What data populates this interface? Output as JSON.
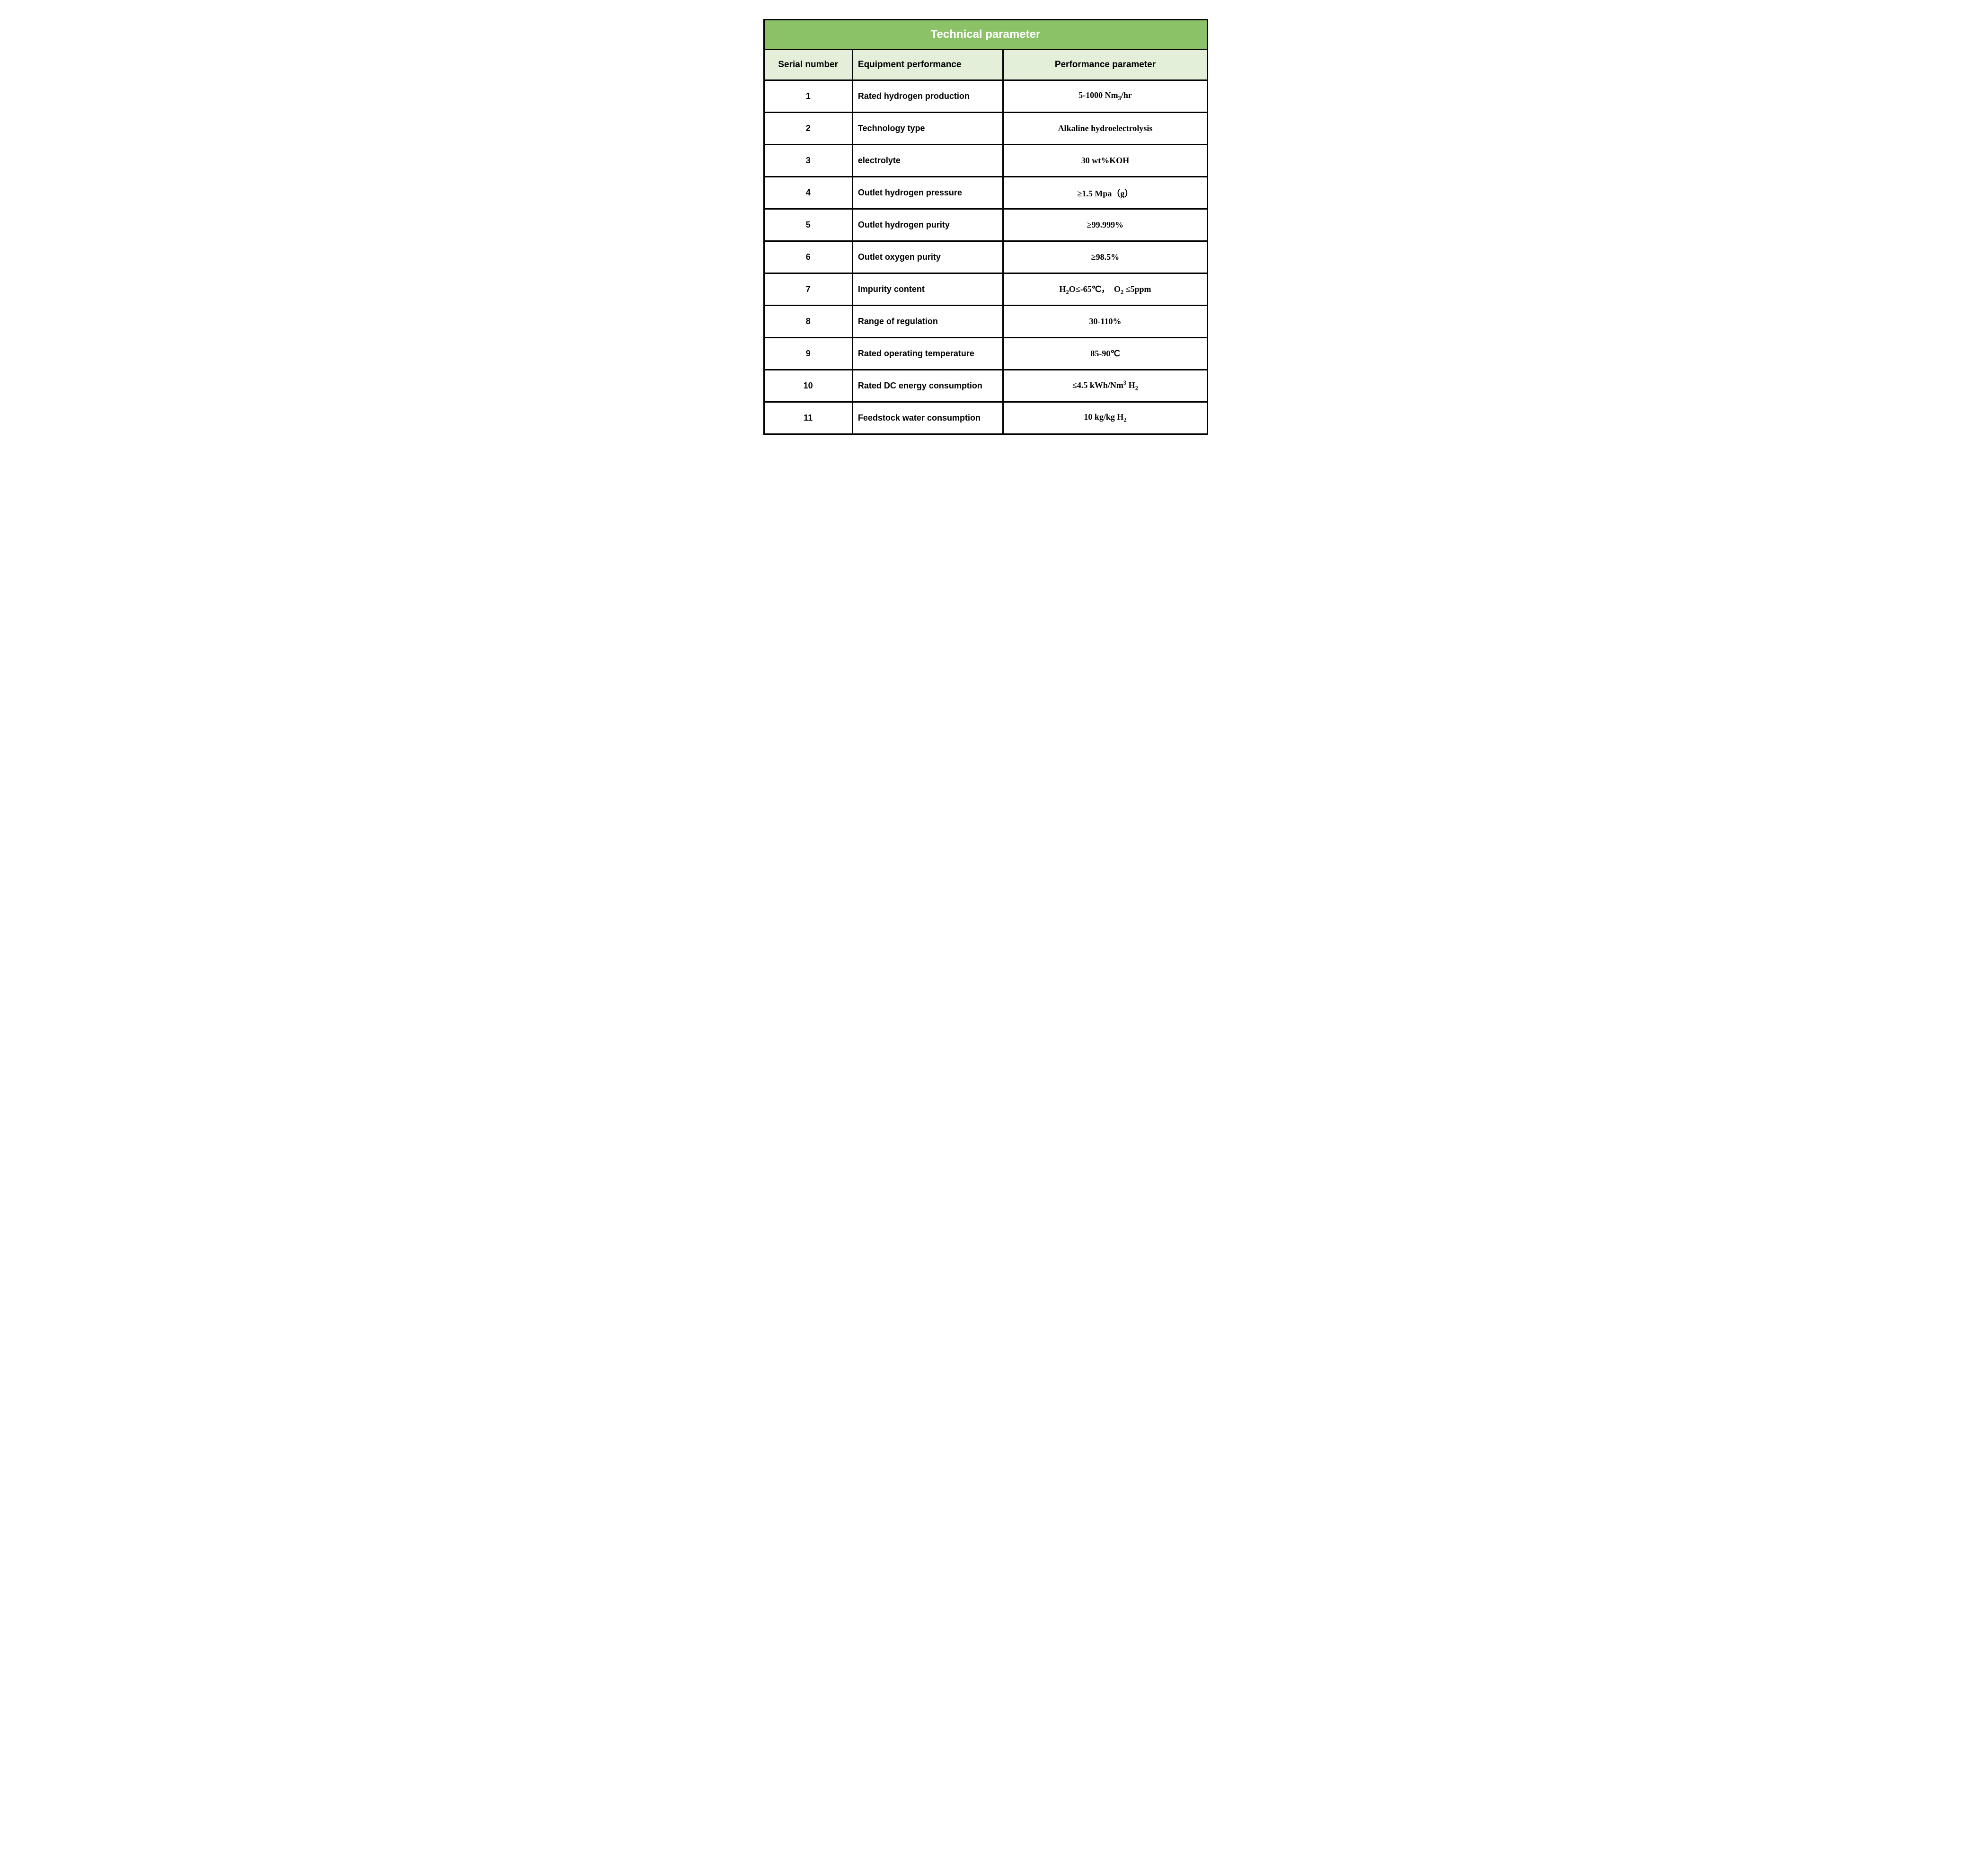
{
  "table": {
    "title": "Technical parameter",
    "title_bg": "#8bc268",
    "title_color": "#ffffff",
    "header_bg": "#e3efd9",
    "cell_bg": "#ffffff",
    "border_color": "#000000",
    "columns": {
      "serial": {
        "label": "Serial number",
        "width_pct": 20,
        "align": "center"
      },
      "equipment": {
        "label": "Equipment performance",
        "width_pct": 34,
        "align": "left"
      },
      "performance": {
        "label": "Performance parameter",
        "width_pct": 46,
        "align": "center"
      }
    },
    "rows": [
      {
        "serial": "1",
        "equipment": "Rated hydrogen production",
        "performance_html": "5-1000 Nm<sub>3</sub>/hr"
      },
      {
        "serial": "2",
        "equipment": "Technology type",
        "performance_html": "Alkaline hydroelectrolysis"
      },
      {
        "serial": "3",
        "equipment": "electrolyte",
        "performance_html": "30 wt%KOH"
      },
      {
        "serial": "4",
        "equipment": "Outlet hydrogen pressure",
        "performance_html": "≥1.5 Mpa（g）"
      },
      {
        "serial": "5",
        "equipment": "Outlet hydrogen purity",
        "performance_html": "≥99.999%"
      },
      {
        "serial": "6",
        "equipment": "Outlet oxygen purity",
        "performance_html": "≥98.5%"
      },
      {
        "serial": "7",
        "equipment": "Impurity content",
        "performance_html": "H<sub>2</sub>O≤-65℃，&nbsp;&nbsp;O<sub>2</sub> ≤5ppm"
      },
      {
        "serial": "8",
        "equipment": "Range of regulation",
        "performance_html": "30-110%"
      },
      {
        "serial": "9",
        "equipment": "Rated operating temperature",
        "performance_html": "85-90℃"
      },
      {
        "serial": "10",
        "equipment": "Rated DC energy consumption",
        "performance_html": "≤4.5 kWh/Nm<sup>3</sup> H<sub>2</sub>"
      },
      {
        "serial": "11",
        "equipment": "Feedstock water consumption",
        "performance_html": "10 kg/kg H<sub>2</sub>"
      }
    ],
    "fontsize_title": 24,
    "fontsize_header": 19,
    "fontsize_cell": 18,
    "font_family_col12": "Arial, sans-serif",
    "font_family_col3": "Georgia, 'Times New Roman', serif"
  }
}
